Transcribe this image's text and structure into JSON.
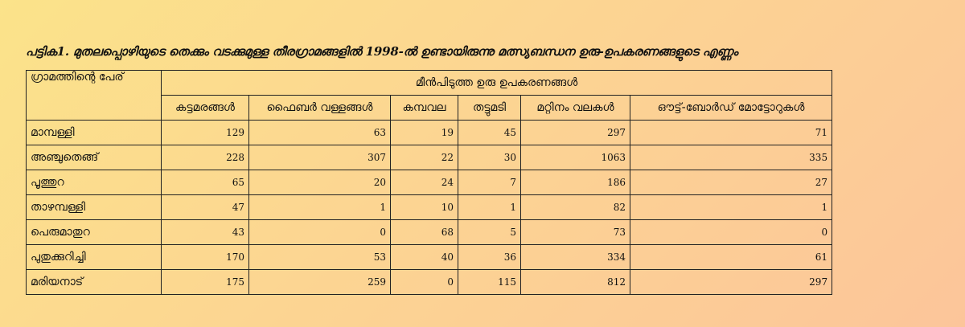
{
  "caption": "പട്ടിക1. മുതലപ്പൊഴിയുടെ തെക്കും വടക്കുമുള്ള തീരഗ്രാമങ്ങളിൽ 1998-ൽ ഉണ്ടായിരുന്നു മത്സ്യബന്ധന ഉരു-ഉപകരണങ്ങളുടെ എണ്ണം",
  "table": {
    "name_header": "ഗ്രാമത്തിന്റെ പേര്",
    "group_header": "മീൻപിടുത്ത ഉരു ഉപകരണങ്ങൾ",
    "columns": [
      "കട്ടമരങ്ങൾ",
      "ഫൈബർ വള്ളങ്ങൾ",
      "കമ്പവല",
      "തട്ടുമടി",
      "മറ്റിനം വലകൾ",
      "ഔട്ട്-ബോർഡ് മോട്ടോറുകൾ"
    ],
    "rows": [
      {
        "name": "മാമ്പള്ളി",
        "values": [
          "129",
          "63",
          "19",
          "45",
          "297",
          "71"
        ]
      },
      {
        "name": "അഞ്ചുതെങ്ങ്",
        "values": [
          "228",
          "307",
          "22",
          "30",
          "1063",
          "335"
        ]
      },
      {
        "name": "പൂത്തുറ",
        "values": [
          "65",
          "20",
          "24",
          "7",
          "186",
          "27"
        ]
      },
      {
        "name": "താഴമ്പള്ളി",
        "values": [
          "47",
          "1",
          "10",
          "1",
          "82",
          "1"
        ]
      },
      {
        "name": "പെരുമാതുറ",
        "values": [
          "43",
          "0",
          "68",
          "5",
          "73",
          "0"
        ]
      },
      {
        "name": "പുതുക്കുറിച്ചി",
        "values": [
          "170",
          "53",
          "40",
          "36",
          "334",
          "61"
        ]
      },
      {
        "name": "മരിയനാട്",
        "values": [
          "175",
          "259",
          "0",
          "115",
          "812",
          "297"
        ]
      }
    ]
  }
}
